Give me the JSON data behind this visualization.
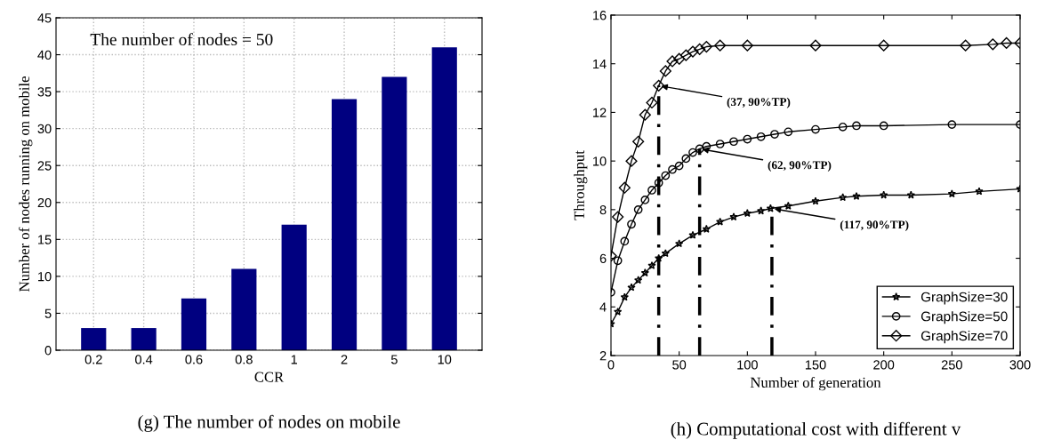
{
  "chart_data": [
    {
      "type": "bar",
      "xlabel": "CCR",
      "ylabel": "Number of nodes running on mobile",
      "categories": [
        "0.2",
        "0.4",
        "0.6",
        "0.8",
        "1",
        "2",
        "5",
        "10"
      ],
      "values": [
        3,
        3,
        7,
        11,
        17,
        34,
        37,
        41
      ],
      "color": "#000080",
      "ylim": [
        0,
        45
      ],
      "yticks": [
        0,
        5,
        10,
        15,
        20,
        25,
        30,
        35,
        40,
        45
      ],
      "grid": true,
      "annotations": [
        "The number of nodes = 50",
        "(g) The number of nodes on mobile"
      ]
    },
    {
      "type": "line",
      "xlabel": "Number of generation",
      "ylabel": "Throughput",
      "xlim": [
        0,
        300
      ],
      "xticks": [
        0,
        50,
        100,
        150,
        200,
        250,
        300
      ],
      "ylim": [
        2,
        16
      ],
      "yticks": [
        2,
        4,
        6,
        8,
        10,
        12,
        14,
        16
      ],
      "legend": "bottom right",
      "line_style": "solid",
      "series": [
        {
          "name": "GraphSize=30",
          "color": "#000000",
          "marker": "star",
          "x": [
            0,
            5,
            10,
            15,
            20,
            25,
            30,
            35,
            40,
            50,
            60,
            70,
            80,
            90,
            100,
            110,
            117,
            130,
            150,
            170,
            180,
            200,
            220,
            250,
            270,
            300
          ],
          "values": [
            3.3,
            3.8,
            4.4,
            4.8,
            5.1,
            5.4,
            5.7,
            6.0,
            6.2,
            6.6,
            6.95,
            7.2,
            7.5,
            7.7,
            7.85,
            7.95,
            8.05,
            8.15,
            8.35,
            8.5,
            8.55,
            8.6,
            8.6,
            8.65,
            8.75,
            8.85
          ]
        },
        {
          "name": "GraphSize=50",
          "color": "#000000",
          "marker": "circle",
          "x": [
            0,
            5,
            10,
            15,
            20,
            25,
            30,
            35,
            40,
            45,
            50,
            55,
            60,
            65,
            70,
            80,
            90,
            100,
            110,
            120,
            130,
            150,
            170,
            180,
            200,
            250,
            300
          ],
          "values": [
            4.6,
            5.9,
            6.7,
            7.4,
            8.0,
            8.4,
            8.8,
            9.1,
            9.4,
            9.65,
            9.8,
            10.1,
            10.35,
            10.5,
            10.6,
            10.7,
            10.8,
            10.9,
            11.0,
            11.1,
            11.2,
            11.3,
            11.4,
            11.45,
            11.45,
            11.5,
            11.5
          ]
        },
        {
          "name": "GraphSize=70",
          "color": "#000000",
          "marker": "diamond",
          "x": [
            0,
            5,
            10,
            15,
            20,
            25,
            30,
            35,
            40,
            45,
            50,
            55,
            60,
            65,
            70,
            80,
            100,
            150,
            200,
            260,
            280,
            290,
            300
          ],
          "values": [
            6.1,
            7.7,
            8.9,
            10.0,
            10.8,
            11.9,
            12.4,
            13.1,
            13.7,
            14.1,
            14.2,
            14.35,
            14.5,
            14.6,
            14.7,
            14.75,
            14.75,
            14.75,
            14.75,
            14.75,
            14.8,
            14.85,
            14.85
          ]
        }
      ],
      "ref_lines": [
        {
          "axis": "x",
          "value": 35,
          "label": null,
          "color": "#000000",
          "line_style": "dashed"
        },
        {
          "axis": "x",
          "value": 65,
          "label": null,
          "color": "#000000",
          "line_style": "dashed"
        },
        {
          "axis": "x",
          "value": 118,
          "label": null,
          "color": "#000000",
          "line_style": "dashed"
        }
      ],
      "annotations": [
        {
          "text": "(37, 90%TP)",
          "x": 35,
          "y": 13.1
        },
        {
          "text": "(62, 90%TP)",
          "x": 65,
          "y": 10.5
        },
        {
          "text": "(117, 90%TP)",
          "x": 118,
          "y": 8.05
        },
        "(h) Computational cost with different v"
      ]
    }
  ]
}
